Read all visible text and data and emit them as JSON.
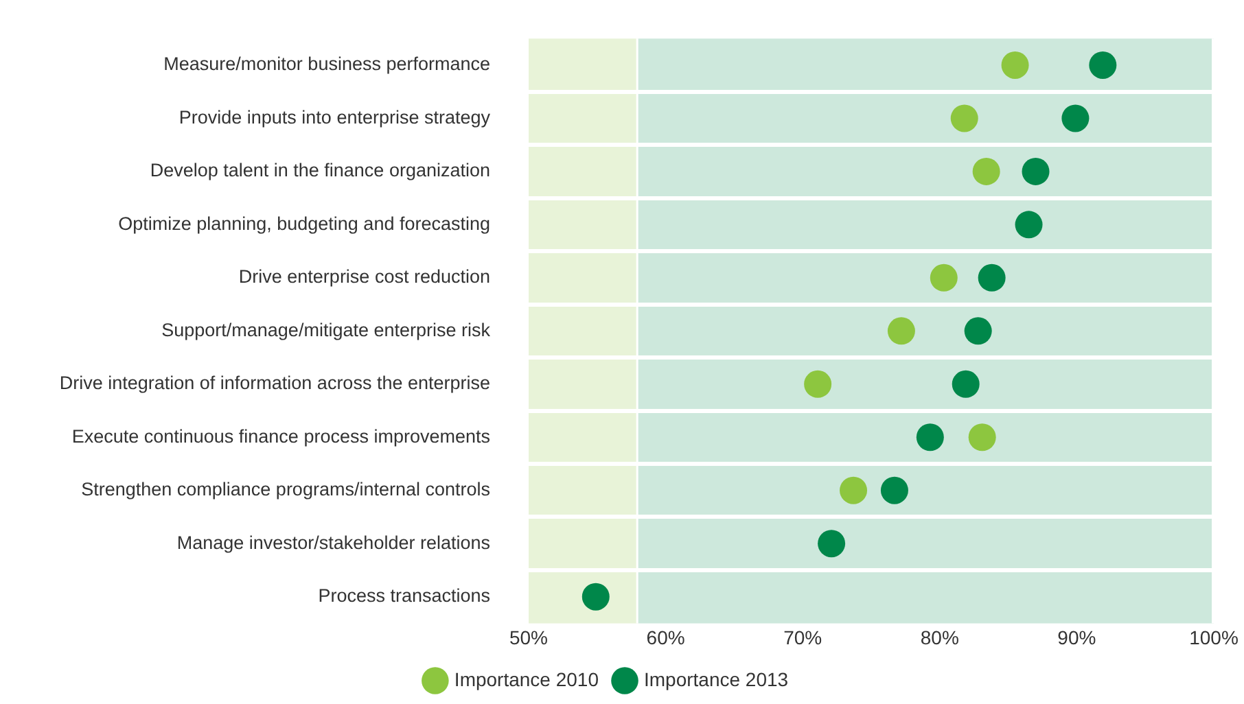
{
  "chart_data": {
    "type": "scatter",
    "orientation": "horizontal",
    "categories": [
      "Measure/monitor business performance",
      "Provide inputs into enterprise strategy",
      "Develop talent in the finance organization",
      "Optimize planning, budgeting and forecasting",
      "Drive enterprise cost reduction",
      "Support/manage/mitigate enterprise risk",
      "Drive integration of information across the enterprise",
      "Execute continuous finance process improvements",
      "Strengthen compliance programs/internal controls",
      "Manage investor/stakeholder relations",
      "Process transactions"
    ],
    "series": [
      {
        "name": "Importance 2010",
        "color": "#8dc63f",
        "values": [
          85.5,
          81.8,
          83.4,
          null,
          80.3,
          77.2,
          71.1,
          83.1,
          73.7,
          null,
          null
        ]
      },
      {
        "name": "Importance 2013",
        "color": "#00874a",
        "values": [
          91.9,
          89.9,
          87.0,
          86.5,
          83.8,
          82.8,
          81.9,
          79.3,
          76.7,
          72.1,
          54.9
        ]
      }
    ],
    "xlim": [
      50,
      100
    ],
    "xticks": [
      {
        "value": 50,
        "label": "50%"
      },
      {
        "value": 60,
        "label": "60%"
      },
      {
        "value": 70,
        "label": "70%"
      },
      {
        "value": 80,
        "label": "80%"
      },
      {
        "value": 90,
        "label": "90%"
      },
      {
        "value": 100,
        "label": "100%"
      }
    ],
    "bands": [
      {
        "axis": "x",
        "from": 50,
        "to": 58,
        "color": "#e8f3d8"
      },
      {
        "axis": "x",
        "from": 58,
        "to": 100,
        "color": "#cde8dc"
      }
    ],
    "grid": "y",
    "legend": "bottom",
    "marker": "circle"
  }
}
